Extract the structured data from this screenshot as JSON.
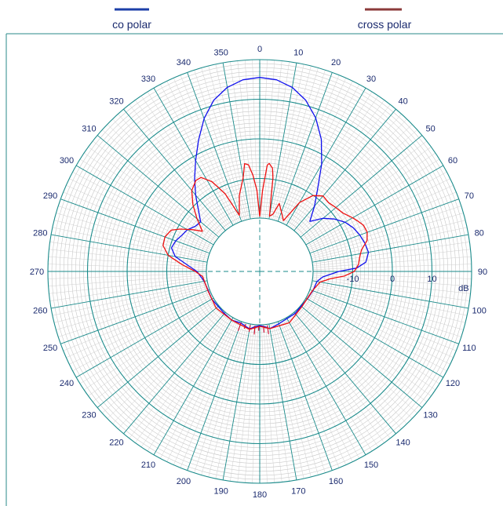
{
  "chart_data": {
    "type": "polar",
    "legend": [
      {
        "name": "co polar",
        "color": "#1c3fa8"
      },
      {
        "name": "cross polar",
        "color": "#8b3a3a"
      }
    ],
    "angle_labels": [
      "0",
      "10",
      "20",
      "30",
      "40",
      "50",
      "60",
      "70",
      "80",
      "90",
      "100",
      "110",
      "120",
      "130",
      "140",
      "150",
      "160",
      "170",
      "180",
      "190",
      "200",
      "210",
      "220",
      "230",
      "240",
      "250",
      "260",
      "270",
      "280",
      "290",
      "300",
      "310",
      "320",
      "330",
      "340",
      "350"
    ],
    "radial_axis": {
      "ticks": [
        -10,
        0,
        10
      ],
      "unit": "dB",
      "r_min": -20,
      "r_max": 20
    },
    "grid_color": "#1a8a8a",
    "series": [
      {
        "name": "co polar",
        "color": "#1010ee",
        "points": [
          [
            0,
            15.5
          ],
          [
            5,
            15.1
          ],
          [
            10,
            13.7
          ],
          [
            15,
            11.3
          ],
          [
            20,
            7.8
          ],
          [
            25,
            3.3
          ],
          [
            30,
            -2.2
          ],
          [
            35,
            -8.0
          ],
          [
            40,
            -12.0
          ],
          [
            45,
            -15.6
          ],
          [
            50,
            -12.6
          ],
          [
            55,
            -10.4
          ],
          [
            60,
            -8.6
          ],
          [
            65,
            -7.4
          ],
          [
            70,
            -6.6
          ],
          [
            75,
            -6.0
          ],
          [
            80,
            -5.6
          ],
          [
            85,
            -6.6
          ],
          [
            88,
            -9.0
          ],
          [
            90,
            -13.5
          ],
          [
            95,
            -17.5
          ],
          [
            100,
            -18.8
          ],
          [
            110,
            -19.2
          ],
          [
            120,
            -19.6
          ],
          [
            140,
            -19.6
          ],
          [
            160,
            -19.4
          ],
          [
            170,
            -18.8
          ],
          [
            175,
            -19.5
          ],
          [
            180,
            -19.8
          ],
          [
            185,
            -19.5
          ],
          [
            190,
            -18.7
          ],
          [
            200,
            -19.6
          ],
          [
            210,
            -19.3
          ],
          [
            220,
            -19.6
          ],
          [
            240,
            -19.5
          ],
          [
            250,
            -19.6
          ],
          [
            260,
            -19.2
          ],
          [
            270,
            -17.6
          ],
          [
            275,
            -15.2
          ],
          [
            280,
            -11.8
          ],
          [
            285,
            -10.4
          ],
          [
            290,
            -10.9
          ],
          [
            295,
            -11.8
          ],
          [
            300,
            -12.4
          ],
          [
            305,
            -13.6
          ],
          [
            310,
            -14.0
          ],
          [
            315,
            -11.6
          ],
          [
            320,
            -8.3
          ],
          [
            325,
            -4.8
          ],
          [
            330,
            -1.1
          ],
          [
            335,
            3.1
          ],
          [
            340,
            7.6
          ],
          [
            345,
            11.3
          ],
          [
            350,
            13.7
          ],
          [
            355,
            15.1
          ],
          [
            360,
            15.5
          ]
        ]
      },
      {
        "name": "cross polar",
        "color": "#ee1010",
        "points": [
          [
            0,
            -19.6
          ],
          [
            2,
            -13.0
          ],
          [
            4,
            -6.6
          ],
          [
            5,
            -6.1
          ],
          [
            7,
            -7.2
          ],
          [
            8,
            -9.6
          ],
          [
            10,
            -19.3
          ],
          [
            13,
            -18.6
          ],
          [
            16,
            -15.6
          ],
          [
            20,
            -17.5
          ],
          [
            25,
            -19.3
          ],
          [
            30,
            -13.4
          ],
          [
            35,
            -10.1
          ],
          [
            40,
            -8.6
          ],
          [
            45,
            -8.9
          ],
          [
            50,
            -8.4
          ],
          [
            55,
            -7.8
          ],
          [
            58,
            -7.0
          ],
          [
            60,
            -6.4
          ],
          [
            63,
            -5.6
          ],
          [
            66,
            -4.8
          ],
          [
            70,
            -4.6
          ],
          [
            74,
            -5.3
          ],
          [
            78,
            -7.2
          ],
          [
            82,
            -8.0
          ],
          [
            86,
            -8.5
          ],
          [
            90,
            -9.6
          ],
          [
            93,
            -12.0
          ],
          [
            96,
            -15.6
          ],
          [
            100,
            -18.0
          ],
          [
            110,
            -19.3
          ],
          [
            130,
            -19.6
          ],
          [
            150,
            -18.5
          ],
          [
            170,
            -18.8
          ],
          [
            180,
            -19.6
          ],
          [
            190,
            -18.6
          ],
          [
            210,
            -19.3
          ],
          [
            230,
            -19.1
          ],
          [
            250,
            -19.5
          ],
          [
            265,
            -19.0
          ],
          [
            270,
            -17.2
          ],
          [
            275,
            -13.8
          ],
          [
            280,
            -10.0
          ],
          [
            285,
            -8.2
          ],
          [
            290,
            -8.0
          ],
          [
            295,
            -8.8
          ],
          [
            298,
            -10.7
          ],
          [
            302,
            -13.6
          ],
          [
            305,
            -15.8
          ],
          [
            310,
            -12.8
          ],
          [
            315,
            -9.6
          ],
          [
            320,
            -6.8
          ],
          [
            325,
            -5.4
          ],
          [
            328,
            -5.5
          ],
          [
            332,
            -7.8
          ],
          [
            336,
            -12.0
          ],
          [
            340,
            -18.4
          ],
          [
            345,
            -13.6
          ],
          [
            350,
            -9.4
          ],
          [
            352,
            -6.0
          ],
          [
            354,
            -6.4
          ],
          [
            356,
            -9.2
          ],
          [
            358,
            -13.0
          ],
          [
            360,
            -19.6
          ]
        ]
      }
    ]
  }
}
